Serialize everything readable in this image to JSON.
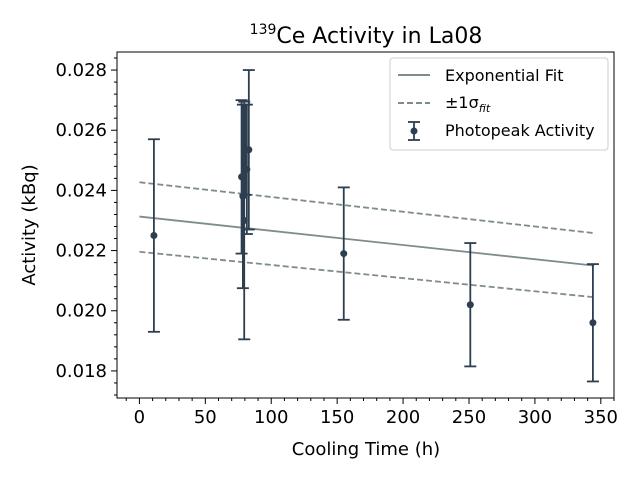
{
  "chart_data": {
    "type": "scatter",
    "title": {
      "superscript": "139",
      "text": "Ce Activity in La08"
    },
    "xlabel": "Cooling Time (h)",
    "ylabel": "Activity (kBq)",
    "xlim": [
      -17,
      360
    ],
    "ylim": [
      0.0171,
      0.0286
    ],
    "xticks": [
      0,
      50,
      100,
      150,
      200,
      250,
      300,
      350
    ],
    "yticks": [
      0.018,
      0.02,
      0.022,
      0.024,
      0.026,
      0.028
    ],
    "ytick_format": 3,
    "minor_ticks": true,
    "grid": false,
    "legend": {
      "placement": "top-right",
      "entries": {
        "fit": "Exponential Fit",
        "sigma_prefix": "±1σ",
        "sigma_subscript": "fit",
        "points": "Photopeak Activity"
      }
    },
    "colors": {
      "fit": "#7f8c8d",
      "points": "#2c3e50"
    },
    "fit": {
      "x": [
        0,
        345
      ],
      "y": [
        0.02313,
        0.0215
      ]
    },
    "upper_band": {
      "x": [
        0,
        345
      ],
      "y": [
        0.02427,
        0.02258
      ]
    },
    "lower_band": {
      "x": [
        0,
        345
      ],
      "y": [
        0.02196,
        0.02045
      ]
    },
    "points": [
      {
        "x": 11,
        "y": 0.0225,
        "err": 0.0032
      },
      {
        "x": 77.5,
        "y": 0.02445,
        "err": 0.00255
      },
      {
        "x": 78.5,
        "y": 0.0238,
        "err": 0.00305
      },
      {
        "x": 79.5,
        "y": 0.023,
        "err": 0.00395
      },
      {
        "x": 80.5,
        "y": 0.02535,
        "err": 0.0015
      },
      {
        "x": 81.5,
        "y": 0.0247,
        "err": 0.00215
      },
      {
        "x": 83,
        "y": 0.02535,
        "err": 0.00265
      },
      {
        "x": 155,
        "y": 0.0219,
        "err": 0.0022
      },
      {
        "x": 251,
        "y": 0.0202,
        "err": 0.00205
      },
      {
        "x": 344,
        "y": 0.0196,
        "err": 0.00195
      }
    ]
  }
}
